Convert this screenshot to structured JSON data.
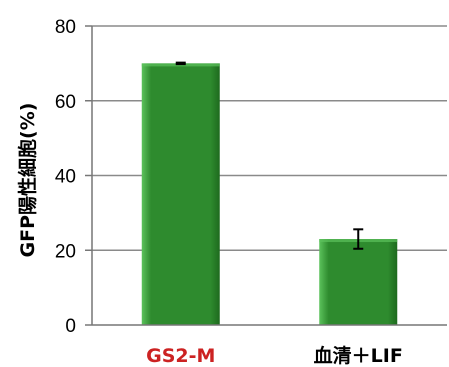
{
  "chart_data": {
    "type": "bar",
    "categories": [
      "GS2-M",
      "血清＋LIF"
    ],
    "category_colors": [
      "#cc2222",
      "#000000"
    ],
    "values": [
      70,
      23
    ],
    "errors": [
      0.2,
      2.6
    ],
    "ylabel": "GFP陽性細胞(%)",
    "xlabel": "",
    "ylim": [
      0,
      80
    ],
    "yticks": [
      0,
      20,
      40,
      60,
      80
    ],
    "grid": true,
    "bar_color": "#2e8b2e",
    "bar_highlight": "#5cc25c",
    "bar_shadow": "#1e6a1e",
    "grid_color": "#8a8a8a",
    "axis_color": "#777777"
  }
}
